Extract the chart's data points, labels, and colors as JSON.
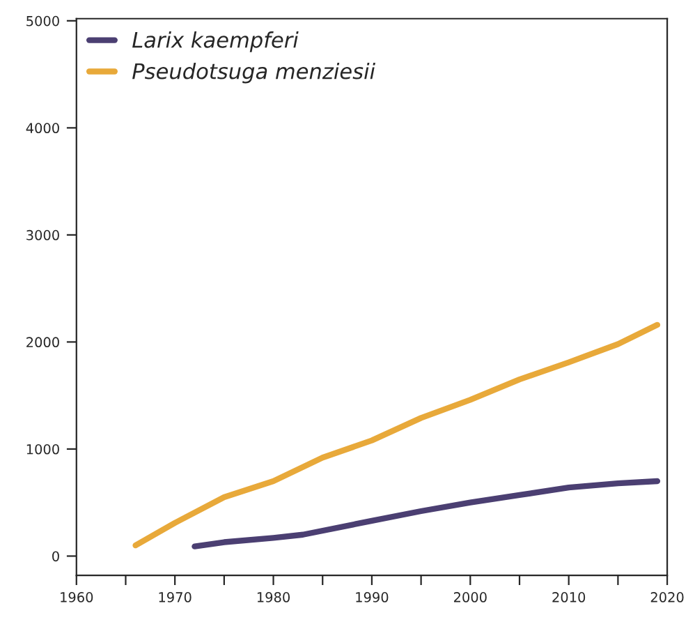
{
  "chart_data": {
    "type": "line",
    "x": [
      1966,
      1970,
      1975,
      1980,
      1985,
      1990,
      1995,
      2000,
      2005,
      2010,
      2015,
      2019
    ],
    "series": [
      {
        "name": "Larix kaempferi",
        "color": "#4b3f72",
        "x": [
          1972,
          1975,
          1980,
          1983,
          1990,
          1995,
          2000,
          2005,
          2010,
          2015,
          2019
        ],
        "values": [
          90,
          130,
          170,
          200,
          330,
          420,
          500,
          570,
          640,
          680,
          700
        ]
      },
      {
        "name": "Pseudotsuga menziesii",
        "color": "#e8a93a",
        "values": [
          100,
          310,
          550,
          700,
          920,
          1080,
          1290,
          1460,
          1650,
          1810,
          1980,
          2160
        ]
      }
    ],
    "xlim": [
      1960,
      2020
    ],
    "ylim": [
      -180,
      5020
    ],
    "xticks": [
      1960,
      {
        "value": 1965,
        "label": null
      },
      1970,
      {
        "value": 1975,
        "label": null
      },
      1980,
      {
        "value": 1985,
        "label": null
      },
      1990,
      {
        "value": 1995,
        "label": null
      },
      2000,
      {
        "value": 2005,
        "label": null
      },
      2010,
      {
        "value": 2015,
        "label": null
      },
      2020
    ],
    "yticks": [
      0,
      1000,
      2000,
      3000,
      4000,
      5000
    ],
    "legend": "top left",
    "grid": false,
    "marker": "none",
    "line_style": "solid"
  }
}
